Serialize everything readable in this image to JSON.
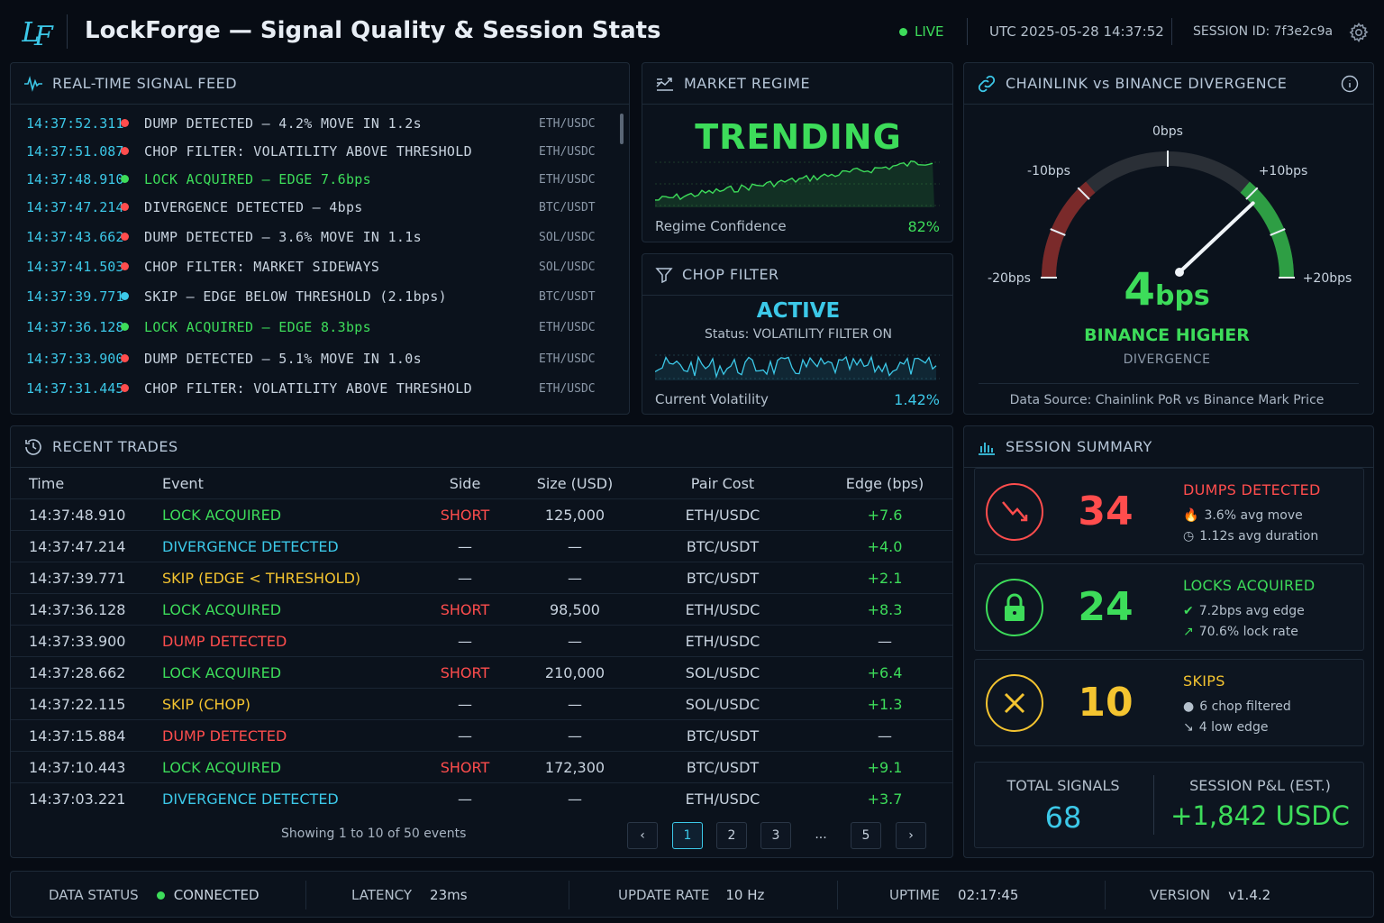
{
  "header": {
    "app_title": "LockForge — Signal Quality & Session Stats",
    "live_label": "LIVE",
    "utc": "UTC 2025-05-28 14:37:52",
    "session_id": "SESSION ID: 7f3e2c9a",
    "logo_text": "LF"
  },
  "feed": {
    "title": "REAL-TIME SIGNAL FEED",
    "rows": [
      {
        "time": "14:37:52.311",
        "status": "red",
        "msg": "DUMP DETECTED – 4.2% MOVE IN 1.2s",
        "pair": "ETH/USDC"
      },
      {
        "time": "14:37:51.087",
        "status": "red",
        "msg": "CHOP FILTER: VOLATILITY ABOVE THRESHOLD",
        "pair": "ETH/USDC"
      },
      {
        "time": "14:37:48.910",
        "status": "green",
        "msg": "LOCK ACQUIRED – EDGE 7.6bps",
        "pair": "ETH/USDC"
      },
      {
        "time": "14:37:47.214",
        "status": "red",
        "msg": "DIVERGENCE DETECTED – 4bps",
        "pair": "BTC/USDT"
      },
      {
        "time": "14:37:43.662",
        "status": "red",
        "msg": "DUMP DETECTED – 3.6% MOVE IN 1.1s",
        "pair": "SOL/USDC"
      },
      {
        "time": "14:37:41.503",
        "status": "red",
        "msg": "CHOP FILTER: MARKET SIDEWAYS",
        "pair": "SOL/USDC"
      },
      {
        "time": "14:37:39.771",
        "status": "cyan",
        "msg": "SKIP – EDGE BELOW THRESHOLD (2.1bps)",
        "pair": "BTC/USDT"
      },
      {
        "time": "14:37:36.128",
        "status": "green",
        "msg": "LOCK ACQUIRED – EDGE 8.3bps",
        "pair": "ETH/USDC"
      },
      {
        "time": "14:37:33.900",
        "status": "red",
        "msg": "DUMP DETECTED – 5.1% MOVE IN 1.0s",
        "pair": "ETH/USDC"
      },
      {
        "time": "14:37:31.445",
        "status": "red",
        "msg": "CHOP FILTER: VOLATILITY ABOVE THRESHOLD",
        "pair": "ETH/USDC"
      }
    ]
  },
  "regime": {
    "title": "MARKET REGIME",
    "state": "TRENDING",
    "confidence_label": "Regime Confidence",
    "confidence": "82%"
  },
  "chop": {
    "title": "CHOP FILTER",
    "state": "ACTIVE",
    "status": "Status: VOLATILITY FILTER ON",
    "vol_label": "Current Volatility",
    "vol": "1.42%"
  },
  "divergence": {
    "title": "CHAINLINK vs BINANCE DIVERGENCE",
    "ticks": [
      "-20bps",
      "-10bps",
      "0bps",
      "+10bps",
      "+20bps"
    ],
    "value_num": "4",
    "value_unit": "bps",
    "value_bps": 4,
    "direction": "BINANCE HIGHER",
    "sub": "DIVERGENCE",
    "source": "Data Source: Chainlink PoR vs Binance Mark Price"
  },
  "trades": {
    "title": "RECENT TRADES",
    "columns": [
      "Time",
      "Event",
      "Side",
      "Size (USD)",
      "Pair Cost",
      "Edge (bps)"
    ],
    "rows": [
      {
        "time": "14:37:48.910",
        "event": "LOCK ACQUIRED",
        "kind": "green",
        "side": "SHORT",
        "size": "125,000",
        "pair": "ETH/USDC",
        "edge": "+7.6"
      },
      {
        "time": "14:37:47.214",
        "event": "DIVERGENCE DETECTED",
        "kind": "cyan",
        "side": "—",
        "size": "—",
        "pair": "BTC/USDT",
        "edge": "+4.0"
      },
      {
        "time": "14:37:39.771",
        "event": "SKIP (EDGE < THRESHOLD)",
        "kind": "yellow",
        "side": "—",
        "size": "—",
        "pair": "BTC/USDT",
        "edge": "+2.1"
      },
      {
        "time": "14:37:36.128",
        "event": "LOCK ACQUIRED",
        "kind": "green",
        "side": "SHORT",
        "size": "98,500",
        "pair": "ETH/USDC",
        "edge": "+8.3"
      },
      {
        "time": "14:37:33.900",
        "event": "DUMP DETECTED",
        "kind": "red",
        "side": "—",
        "size": "—",
        "pair": "ETH/USDC",
        "edge": "—"
      },
      {
        "time": "14:37:28.662",
        "event": "LOCK ACQUIRED",
        "kind": "green",
        "side": "SHORT",
        "size": "210,000",
        "pair": "SOL/USDC",
        "edge": "+6.4"
      },
      {
        "time": "14:37:22.115",
        "event": "SKIP (CHOP)",
        "kind": "yellow",
        "side": "—",
        "size": "—",
        "pair": "SOL/USDC",
        "edge": "+1.3"
      },
      {
        "time": "14:37:15.884",
        "event": "DUMP DETECTED",
        "kind": "red",
        "side": "—",
        "size": "—",
        "pair": "BTC/USDT",
        "edge": "—"
      },
      {
        "time": "14:37:10.443",
        "event": "LOCK ACQUIRED",
        "kind": "green",
        "side": "SHORT",
        "size": "172,300",
        "pair": "BTC/USDT",
        "edge": "+9.1"
      },
      {
        "time": "14:37:03.221",
        "event": "DIVERGENCE DETECTED",
        "kind": "cyan",
        "side": "—",
        "size": "—",
        "pair": "ETH/USDC",
        "edge": "+3.7"
      }
    ],
    "showing": "Showing 1 to 10 of 50 events",
    "pages": [
      "1",
      "2",
      "3",
      "...",
      "5"
    ],
    "prev": "‹",
    "next": "›"
  },
  "summary": {
    "title": "SESSION SUMMARY",
    "dumps": {
      "count": "34",
      "label": "DUMPS DETECTED",
      "l1": "3.6% avg move",
      "l2": "1.12s avg duration"
    },
    "locks": {
      "count": "24",
      "label": "LOCKS ACQUIRED",
      "l1": "7.2bps avg edge",
      "l2": "70.6% lock rate"
    },
    "skips": {
      "count": "10",
      "label": "SKIPS",
      "l1": "6 chop filtered",
      "l2": "4 low edge"
    },
    "total_label": "TOTAL SIGNALS",
    "total": "68",
    "pnl_label": "SESSION P&L (EST.)",
    "pnl": "+1,842 USDC"
  },
  "footer": {
    "data_status_label": "DATA STATUS",
    "data_status": "CONNECTED",
    "latency_label": "LATENCY",
    "latency": "23ms",
    "update_label": "UPDATE RATE",
    "update": "10 Hz",
    "uptime_label": "UPTIME",
    "uptime": "02:17:45",
    "version_label": "VERSION",
    "version": "v1.4.2"
  },
  "colors": {
    "green": "#3ddc5a",
    "red": "#ff4d4d",
    "cyan": "#3cc8e8",
    "yellow": "#f4c430",
    "background": "#070c14"
  }
}
